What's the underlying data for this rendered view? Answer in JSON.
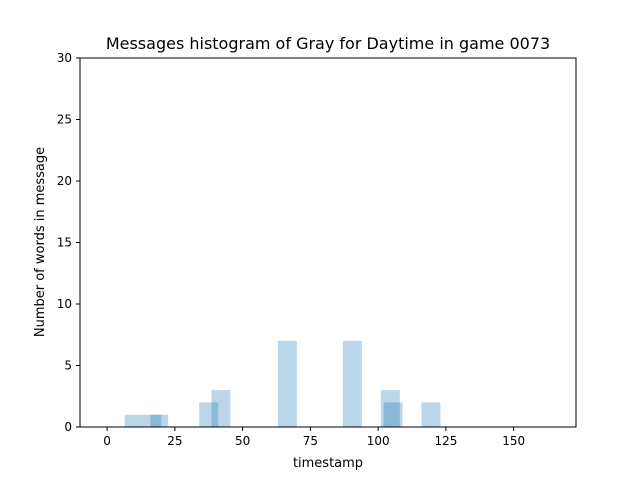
{
  "chart_data": {
    "type": "bar",
    "title": "Messages histogram of Gray for Daytime in game 0073",
    "xlabel": "timestamp",
    "ylabel": "Number of words in message",
    "xlim": [
      -10,
      173
    ],
    "ylim": [
      0,
      30
    ],
    "xticks": [
      0,
      25,
      50,
      75,
      100,
      125,
      150
    ],
    "yticks": [
      0,
      5,
      10,
      15,
      20,
      25,
      30
    ],
    "bar_color": "#1f77b4",
    "bar_opacity": 0.3,
    "grid": false,
    "bars": [
      {
        "x0": 6.5,
        "x1": 14.5,
        "value": 1
      },
      {
        "x0": 14.5,
        "x1": 22.5,
        "value": 1
      },
      {
        "x0": 16,
        "x1": 20,
        "value": 1
      },
      {
        "x0": 34,
        "x1": 41,
        "value": 2
      },
      {
        "x0": 38.5,
        "x1": 45.5,
        "value": 3
      },
      {
        "x0": 63,
        "x1": 70,
        "value": 7
      },
      {
        "x0": 87,
        "x1": 94,
        "value": 7
      },
      {
        "x0": 101,
        "x1": 108,
        "value": 3
      },
      {
        "x0": 102,
        "x1": 109,
        "value": 2
      },
      {
        "x0": 116,
        "x1": 123,
        "value": 2
      }
    ]
  }
}
